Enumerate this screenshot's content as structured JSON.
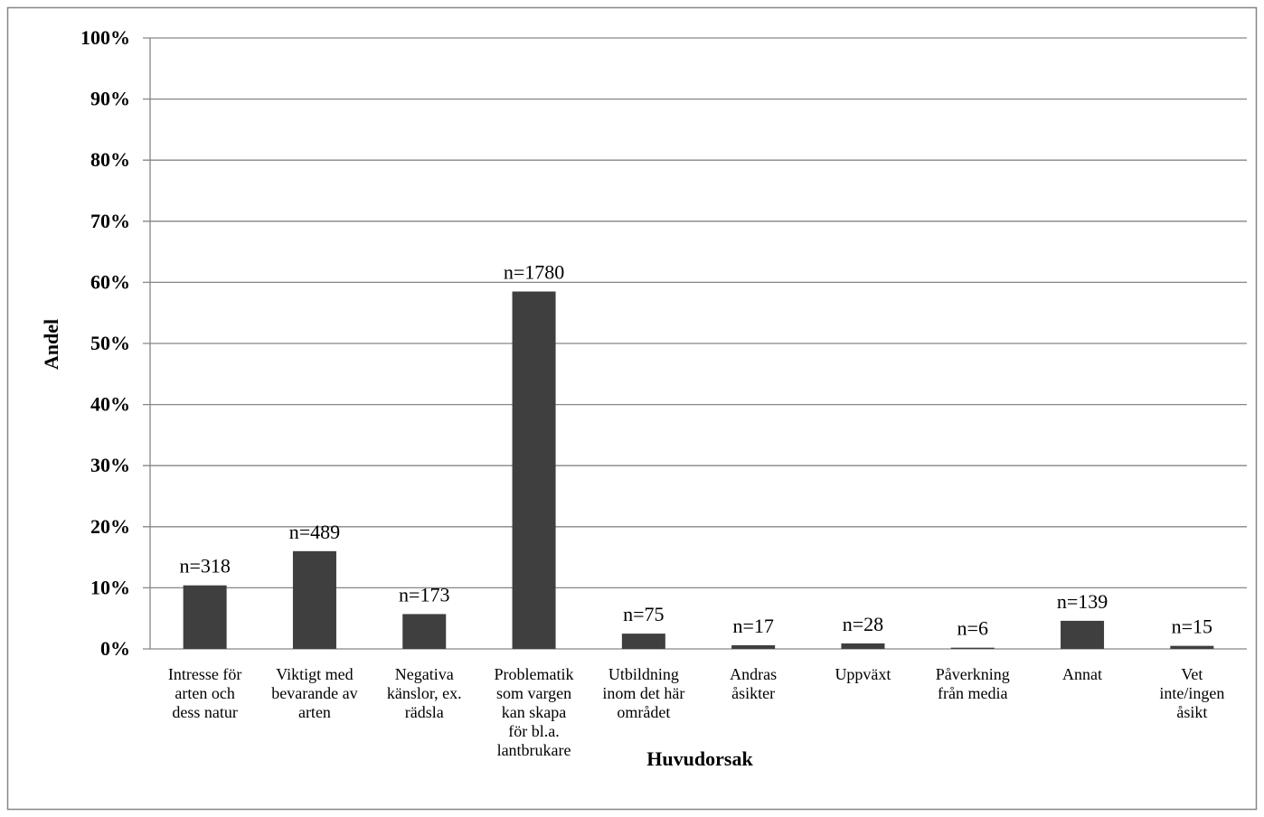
{
  "chart_data": {
    "type": "bar",
    "xlabel": "Huvudorsak",
    "ylabel": "Andel",
    "ylim": [
      0,
      100
    ],
    "yticks": [
      "0%",
      "10%",
      "20%",
      "30%",
      "40%",
      "50%",
      "60%",
      "70%",
      "80%",
      "90%",
      "100%"
    ],
    "grid": true,
    "categories": [
      [
        "Intresse för",
        "arten och",
        "dess natur"
      ],
      [
        "Viktigt med",
        "bevarande av",
        "arten"
      ],
      [
        "Negativa",
        "känslor, ex.",
        "rädsla"
      ],
      [
        "Problematik",
        "som vargen",
        "kan skapa",
        "för bl.a.",
        "lantbrukare"
      ],
      [
        "Utbildning",
        "inom det här",
        "området"
      ],
      [
        "Andras",
        "åsikter"
      ],
      [
        "Uppväxt"
      ],
      [
        "Påverkning",
        "från media"
      ],
      [
        "Annat"
      ],
      [
        "Vet",
        "inte/ingen",
        "åsikt"
      ]
    ],
    "values": [
      10.4,
      16.0,
      5.7,
      58.5,
      2.5,
      0.6,
      0.9,
      0.2,
      4.6,
      0.5
    ],
    "data_labels": [
      "n=318",
      "n=489",
      "n=173",
      "n=1780",
      "n=75",
      "n=17",
      "n=28",
      "n=6",
      "n=139",
      "n=15"
    ],
    "bar_color": "#3f3f3f",
    "grid_color": "#868686",
    "frame_color": "#868686"
  }
}
